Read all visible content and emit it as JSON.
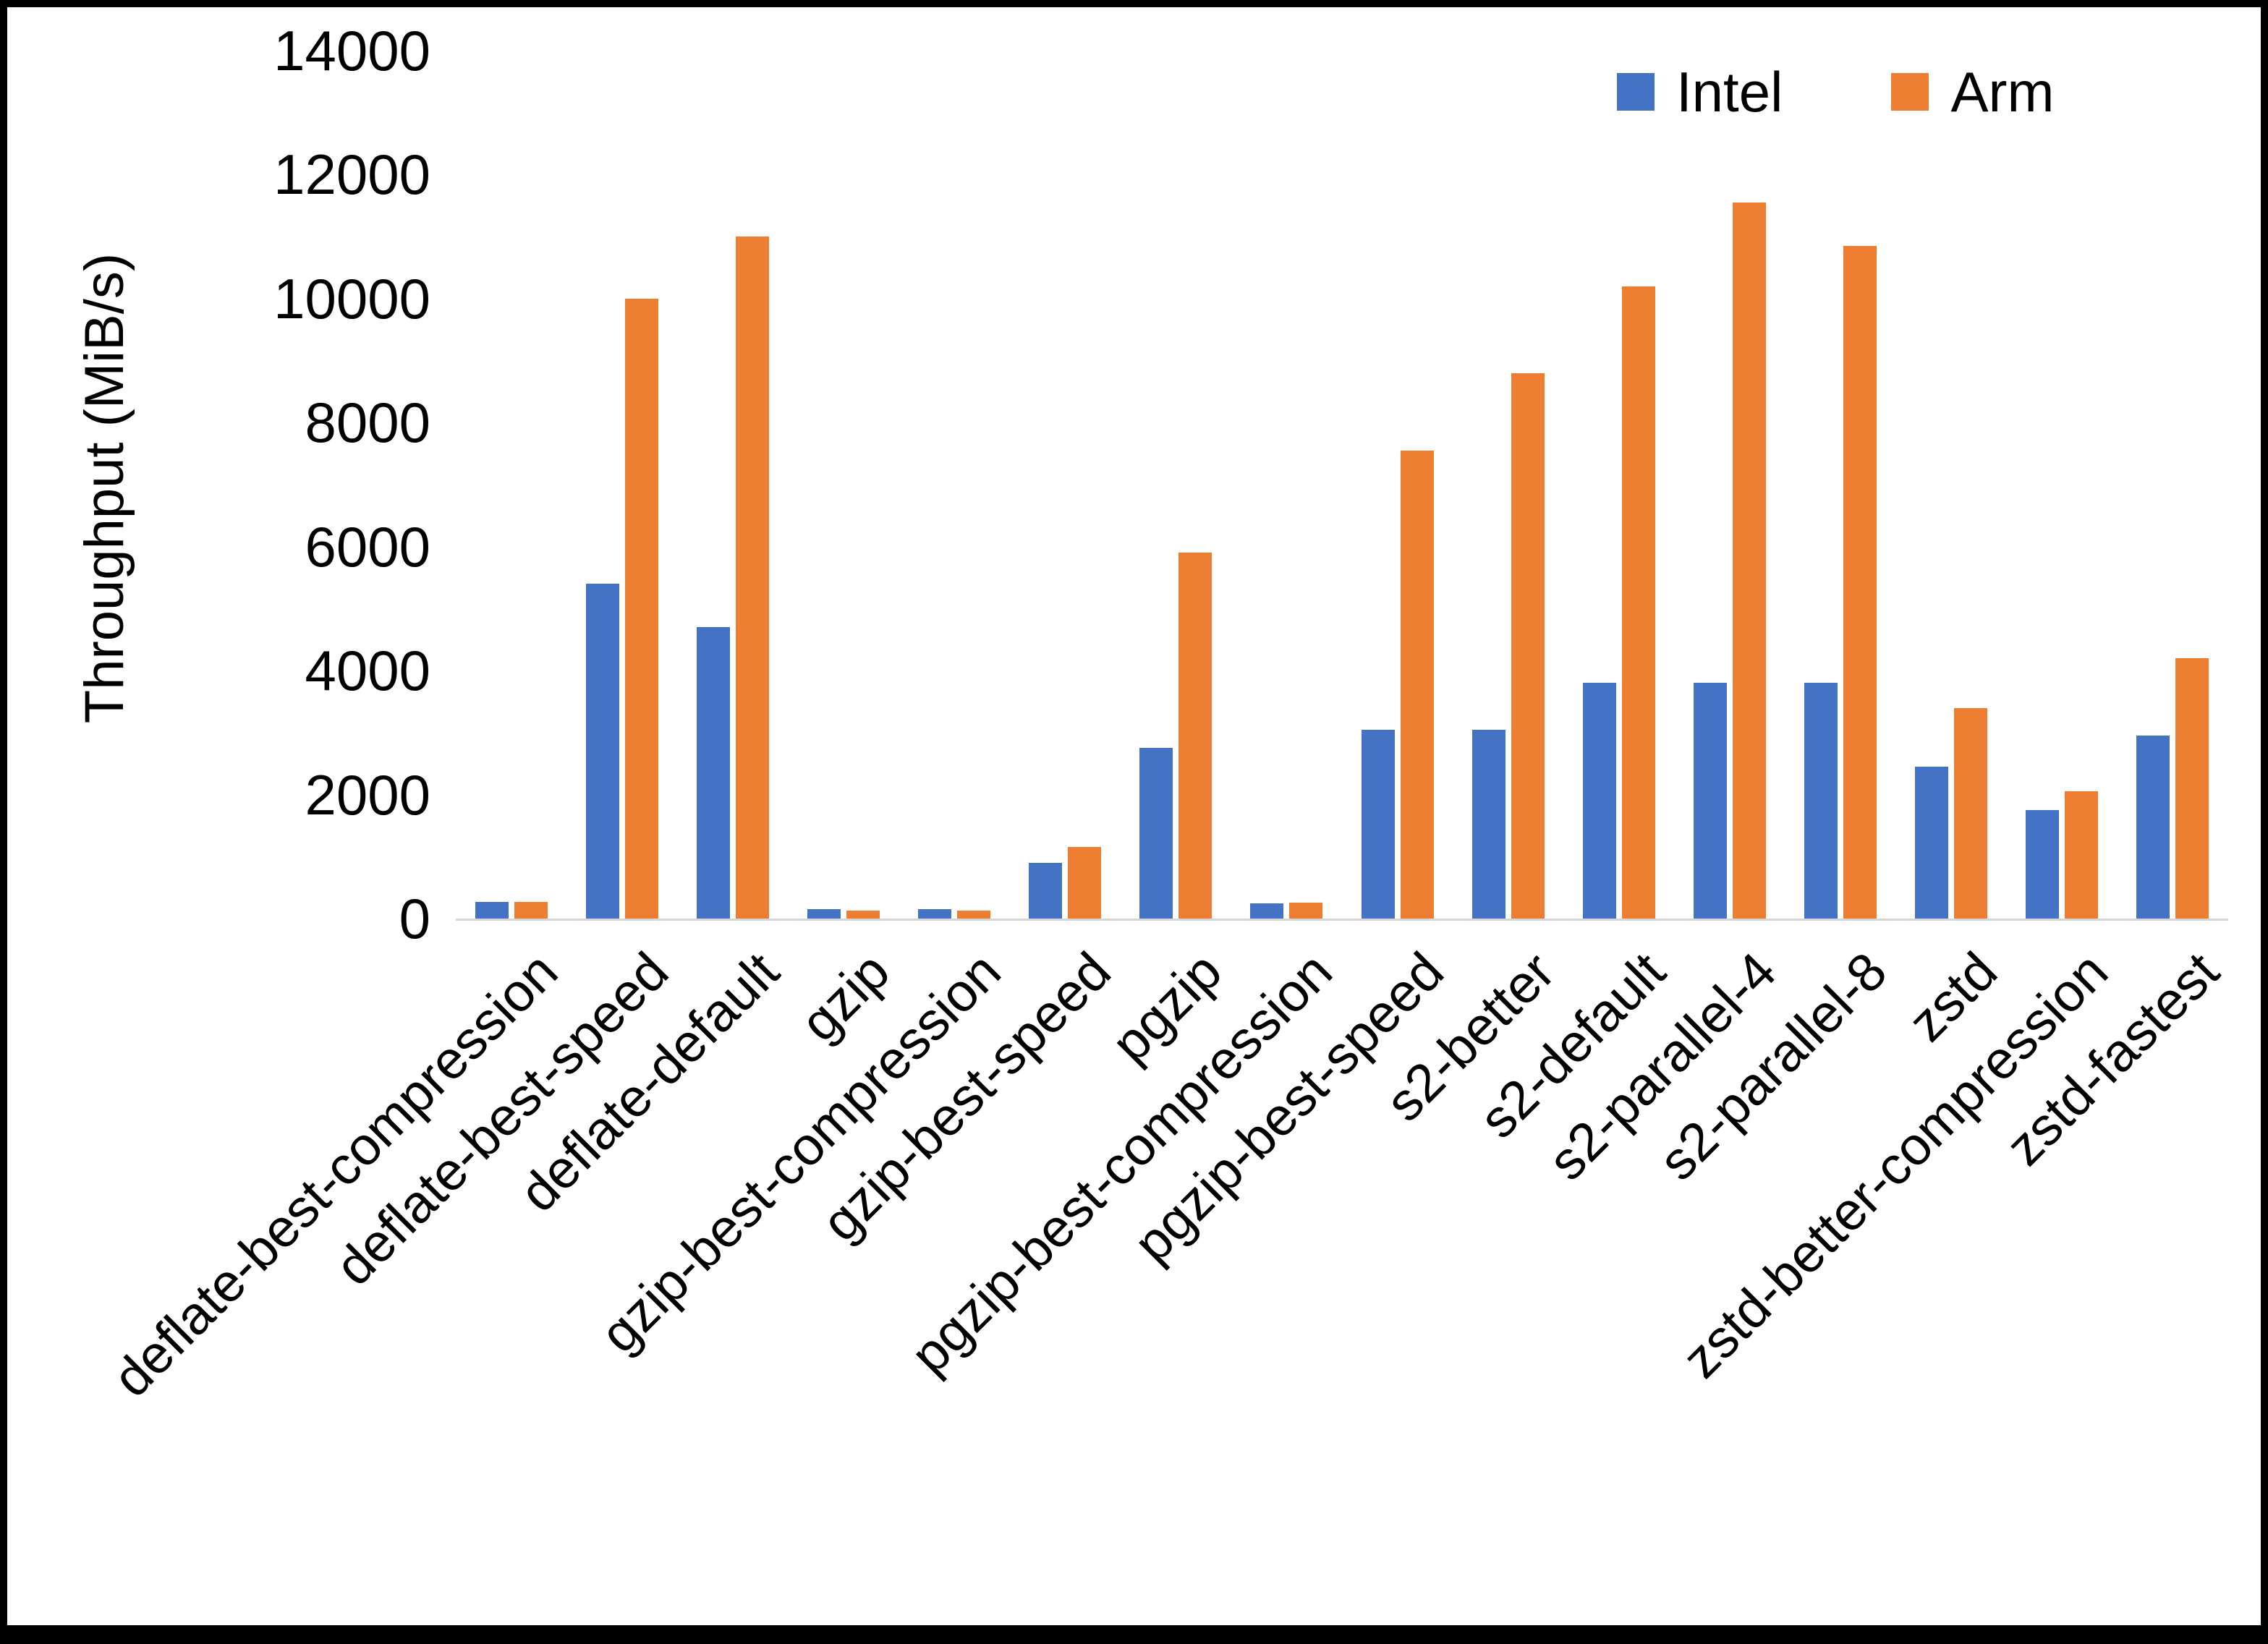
{
  "chart_data": {
    "type": "bar",
    "title": "",
    "xlabel": "",
    "ylabel": "Throughput (MiB/s)",
    "ylim": [
      0,
      14000
    ],
    "ytick_step": 2000,
    "grid": false,
    "legend_position": "top-right",
    "categories": [
      "deflate-best-compression",
      "deflate-best-speed",
      "deflate-default",
      "gzip",
      "gzip-best-compression",
      "gzip-best-speed",
      "pgzip",
      "pgzip-best-compression",
      "pgzip-best-speed",
      "s2-better",
      "s2-default",
      "s2-parallel-4",
      "s2-parallel-8",
      "zstd",
      "zstd-better-compression",
      "zstd-fastest"
    ],
    "series": [
      {
        "name": "Intel",
        "color": "#4472C4",
        "values": [
          270,
          5400,
          4700,
          150,
          150,
          900,
          2750,
          250,
          3050,
          3050,
          3800,
          3800,
          3800,
          2450,
          1750,
          2950
        ]
      },
      {
        "name": "Arm",
        "color": "#ED7D31",
        "values": [
          270,
          10000,
          11000,
          130,
          130,
          1150,
          5900,
          260,
          7550,
          8800,
          10200,
          11550,
          10850,
          3400,
          2050,
          4200
        ]
      }
    ]
  },
  "frame": {
    "background": "#ffffff",
    "border_color": "#000000",
    "axis_line_color": "#d6d6d6"
  }
}
